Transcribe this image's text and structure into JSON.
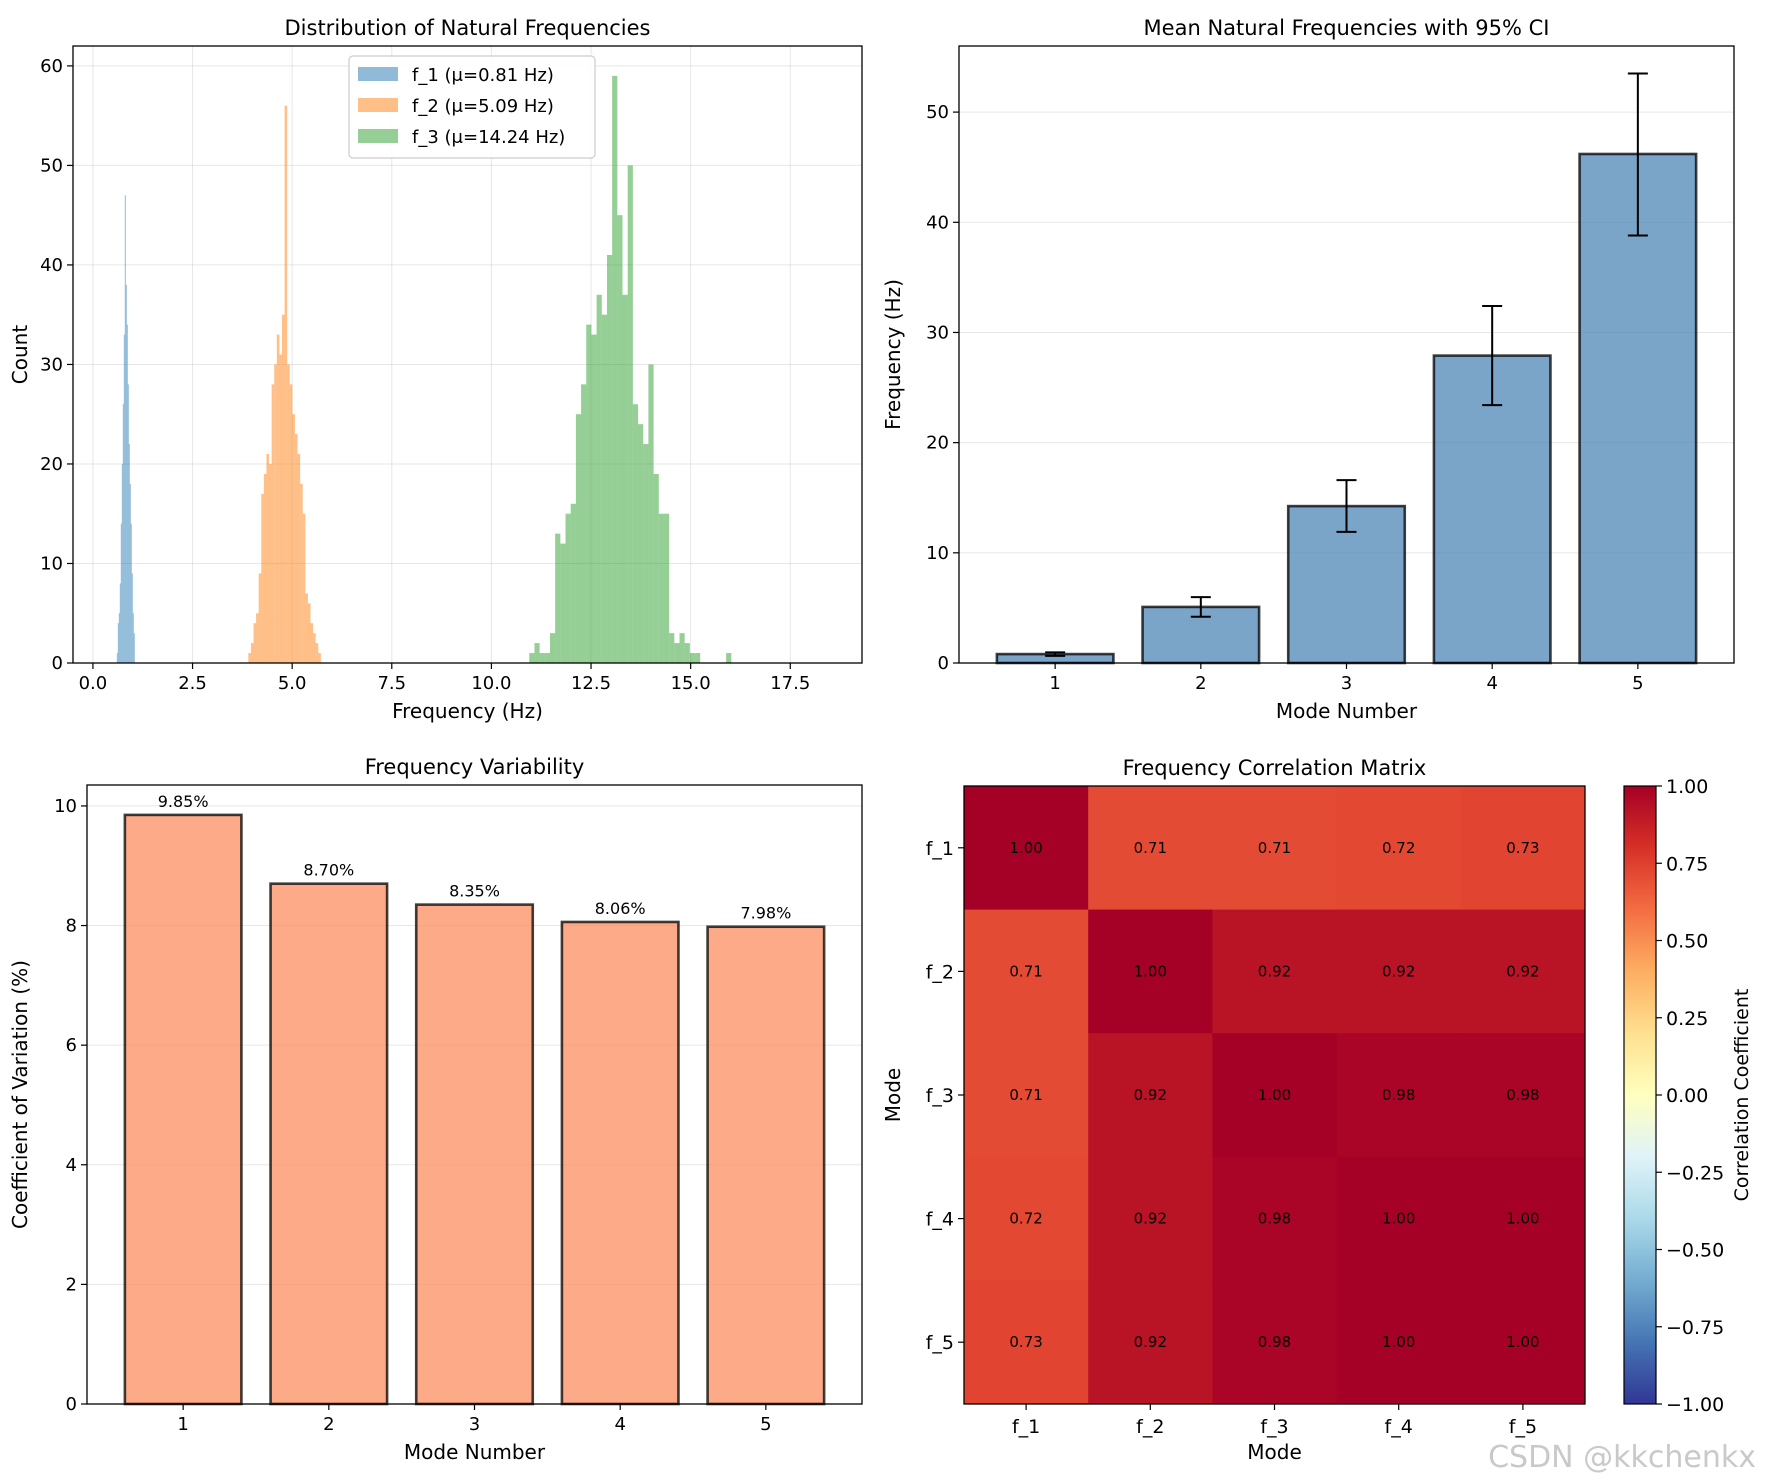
{
  "watermark": "CSDN @kkchenkx",
  "chart_data": [
    {
      "type": "histogram",
      "title": "Distribution of Natural Frequencies",
      "xlabel": "Frequency (Hz)",
      "ylabel": "Count",
      "xlim": [
        -0.5,
        19.3
      ],
      "ylim": [
        0,
        62
      ],
      "xticks": [
        0.0,
        2.5,
        5.0,
        7.5,
        10.0,
        12.5,
        15.0,
        17.5
      ],
      "xtick_labels": [
        "0.0",
        "2.5",
        "5.0",
        "7.5",
        "10.0",
        "12.5",
        "15.0",
        "17.5"
      ],
      "yticks": [
        0,
        10,
        20,
        30,
        40,
        50,
        60
      ],
      "ytick_labels": [
        "0",
        "10",
        "20",
        "30",
        "40",
        "50",
        "60"
      ],
      "grid": true,
      "legend_position": "top-center",
      "series": [
        {
          "name": "f_1 (μ=0.81 Hz)",
          "color": "#1f77b4",
          "bin_start": 0.6,
          "bin_width": 0.025,
          "counts": [
            1,
            4,
            5,
            8,
            14,
            20,
            26,
            33,
            47,
            38,
            34,
            28,
            22,
            18,
            14,
            9,
            5,
            3
          ]
        },
        {
          "name": "f_2 (μ=5.09 Hz)",
          "color": "#ff7f0e",
          "bin_start": 3.9,
          "bin_width": 0.065,
          "counts": [
            1,
            2,
            4,
            5,
            9,
            17,
            19,
            21,
            20,
            28,
            30,
            33,
            31,
            35,
            56,
            30,
            28,
            25,
            23,
            21,
            18,
            15,
            7,
            6,
            4,
            3,
            2,
            1
          ]
        },
        {
          "name": "f_3 (μ=14.24 Hz)",
          "color": "#2ca02c",
          "bin_start": 10.95,
          "bin_width": 0.13,
          "counts": [
            1,
            2,
            1,
            1,
            3,
            13,
            12,
            15,
            16,
            25,
            28,
            34,
            33,
            37,
            35,
            41,
            59,
            45,
            37,
            50,
            26,
            24,
            22,
            30,
            19,
            15,
            15,
            3,
            2,
            3,
            2,
            1,
            1,
            0,
            0,
            0,
            0,
            0,
            1
          ]
        }
      ]
    },
    {
      "type": "bar",
      "title": "Mean Natural Frequencies with 95% CI",
      "xlabel": "Mode Number",
      "ylabel": "Frequency (Hz)",
      "categories": [
        "1",
        "2",
        "3",
        "4",
        "5"
      ],
      "values": [
        0.81,
        5.09,
        14.24,
        27.9,
        46.2
      ],
      "ci_low": [
        0.65,
        4.2,
        11.9,
        23.4,
        38.8
      ],
      "ci_high": [
        0.97,
        5.98,
        16.6,
        32.4,
        53.5
      ],
      "ylim": [
        0,
        56
      ],
      "yticks": [
        0,
        10,
        20,
        30,
        40,
        50
      ],
      "ytick_labels": [
        "0",
        "10",
        "20",
        "30",
        "40",
        "50"
      ],
      "grid": true,
      "color": "#4682b4"
    },
    {
      "type": "bar",
      "title": "Frequency Variability",
      "xlabel": "Mode Number",
      "ylabel": "Coefficient of Variation (%)",
      "categories": [
        "1",
        "2",
        "3",
        "4",
        "5"
      ],
      "values": [
        9.85,
        8.7,
        8.35,
        8.06,
        7.98
      ],
      "data_labels": [
        "9.85%",
        "8.70%",
        "8.35%",
        "8.06%",
        "7.98%"
      ],
      "ylim": [
        0,
        10.35
      ],
      "yticks": [
        0,
        2,
        4,
        6,
        8,
        10
      ],
      "ytick_labels": [
        "0",
        "2",
        "4",
        "6",
        "8",
        "10"
      ],
      "grid": true,
      "color": "#fc8d62"
    },
    {
      "type": "heatmap",
      "title": "Frequency Correlation Matrix",
      "xlabel": "Mode",
      "ylabel": "Mode",
      "x_labels": [
        "f_1",
        "f_2",
        "f_3",
        "f_4",
        "f_5"
      ],
      "y_labels": [
        "f_1",
        "f_2",
        "f_3",
        "f_4",
        "f_5"
      ],
      "values": [
        [
          1.0,
          0.71,
          0.71,
          0.72,
          0.73
        ],
        [
          0.71,
          1.0,
          0.92,
          0.92,
          0.92
        ],
        [
          0.71,
          0.92,
          1.0,
          0.98,
          0.98
        ],
        [
          0.72,
          0.92,
          0.98,
          1.0,
          1.0
        ],
        [
          0.73,
          0.92,
          0.98,
          1.0,
          1.0
        ]
      ],
      "cell_labels": [
        [
          "1.00",
          "0.71",
          "0.71",
          "0.72",
          "0.73"
        ],
        [
          "0.71",
          "1.00",
          "0.92",
          "0.92",
          "0.92"
        ],
        [
          "0.71",
          "0.92",
          "1.00",
          "0.98",
          "0.98"
        ],
        [
          "0.72",
          "0.92",
          "0.98",
          "1.00",
          "1.00"
        ],
        [
          "0.73",
          "0.92",
          "0.98",
          "1.00",
          "1.00"
        ]
      ],
      "colormap": "RdYlBu_r",
      "vmin": -1.0,
      "vmax": 1.0,
      "colorbar_label": "Correlation Coefficient",
      "colorbar_ticks": [
        1.0,
        0.75,
        0.5,
        0.25,
        0.0,
        -0.25,
        -0.5,
        -0.75,
        -1.0
      ],
      "colorbar_tick_labels": [
        "1.00",
        "0.75",
        "0.50",
        "0.25",
        "0.00",
        "−0.25",
        "−0.50",
        "−0.75",
        "−1.00"
      ]
    }
  ]
}
